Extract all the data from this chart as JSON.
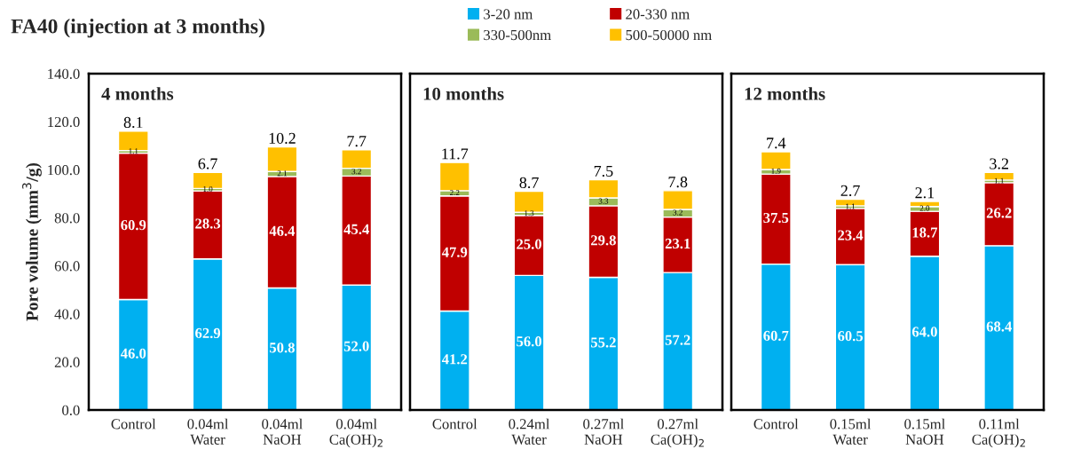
{
  "chart_data": [
    {
      "type": "bar",
      "stacked": true,
      "title": "4 months",
      "annotations": [
        "FA40 (injection at 3 months)"
      ],
      "ylabel": "Pore volume (mm$^{3}$/g)",
      "categories": [
        "Control",
        "0.04ml\nWater",
        "0.04ml\nNaOH",
        "0.04ml\nCa(OH)$_{2}$"
      ],
      "ylim": [
        0,
        140
      ],
      "yticks": [
        {
          "value": 0,
          "label": "0.0"
        },
        {
          "value": 20,
          "label": "20.0"
        },
        {
          "value": 40,
          "label": "40.0"
        },
        {
          "value": 60,
          "label": "60.0"
        },
        {
          "value": 80,
          "label": "80.0"
        },
        {
          "value": 100,
          "label": "100.0"
        },
        {
          "value": 120,
          "label": "120.0"
        },
        {
          "value": 140,
          "label": "140.0"
        }
      ],
      "legend": "top",
      "grid": false,
      "series": [
        {
          "name": "3-20 nm",
          "color": "#00b0f0",
          "values": [
            46.0,
            62.9,
            50.8,
            52.0
          ],
          "value_labels": [
            "46.0",
            "62.9",
            "50.8",
            "52.0"
          ]
        },
        {
          "name": "20-330 nm",
          "color": "#c00000",
          "values": [
            60.9,
            28.3,
            46.4,
            45.4
          ],
          "value_labels": [
            "60.9",
            "28.3",
            "46.4",
            "45.4"
          ]
        },
        {
          "name": "330-500nm",
          "color": "#9bbb59",
          "values": [
            1.1,
            1.0,
            2.1,
            3.2
          ],
          "value_labels": [
            "1.1",
            "1.0",
            "2.1",
            "3.2"
          ]
        },
        {
          "name": "500-50000 nm",
          "color": "#ffc000",
          "values": [
            8.1,
            6.7,
            10.2,
            7.7
          ],
          "value_labels": [
            "8.1",
            "6.7",
            "10.2",
            "7.7"
          ]
        }
      ]
    },
    {
      "type": "bar",
      "stacked": true,
      "title": "10 months",
      "categories": [
        "Control",
        "0.24ml\nWater",
        "0.27ml\nNaOH",
        "0.27ml\nCa(OH)$_{2}$"
      ],
      "ylim": [
        0,
        140
      ],
      "tick_labels": "x",
      "grid": false,
      "series": [
        {
          "color": "#00b0f0",
          "values": [
            41.2,
            56.0,
            55.2,
            57.2
          ],
          "value_labels": [
            "41.2",
            "56.0",
            "55.2",
            "57.2"
          ]
        },
        {
          "color": "#c00000",
          "values": [
            47.9,
            25.0,
            29.8,
            23.1
          ],
          "value_labels": [
            "47.9",
            "25.0",
            "29.8",
            "23.1"
          ]
        },
        {
          "color": "#9bbb59",
          "values": [
            2.2,
            1.3,
            3.3,
            3.2
          ],
          "value_labels": [
            "2.2",
            "1.3",
            "3.3",
            "3.2"
          ]
        },
        {
          "color": "#ffc000",
          "values": [
            11.7,
            8.7,
            7.5,
            7.8
          ],
          "value_labels": [
            "11.7",
            "8.7",
            "7.5",
            "7.8"
          ]
        }
      ]
    },
    {
      "type": "bar",
      "stacked": true,
      "title": "12 months",
      "categories": [
        "Control",
        "0.15ml\nWater",
        "0.15ml\nNaOH",
        "0.11ml\nCa(OH)$_{2}$"
      ],
      "ylim": [
        0,
        140
      ],
      "tick_labels": "x",
      "grid": false,
      "series": [
        {
          "color": "#00b0f0",
          "values": [
            60.7,
            60.5,
            64.0,
            68.4
          ],
          "value_labels": [
            "60.7",
            "60.5",
            "64.0",
            "68.4"
          ]
        },
        {
          "color": "#c00000",
          "values": [
            37.5,
            23.4,
            18.7,
            26.2
          ],
          "value_labels": [
            "37.5",
            "23.4",
            "18.7",
            "26.2"
          ]
        },
        {
          "color": "#9bbb59",
          "values": [
            1.9,
            1.1,
            2.0,
            1.1
          ],
          "value_labels": [
            "1.9",
            "1.1",
            "2.0",
            "1.1"
          ]
        },
        {
          "color": "#ffc000",
          "values": [
            7.4,
            2.7,
            2.1,
            3.2
          ],
          "value_labels": [
            "7.4",
            "2.7",
            "2.1",
            "3.2"
          ]
        }
      ]
    }
  ]
}
